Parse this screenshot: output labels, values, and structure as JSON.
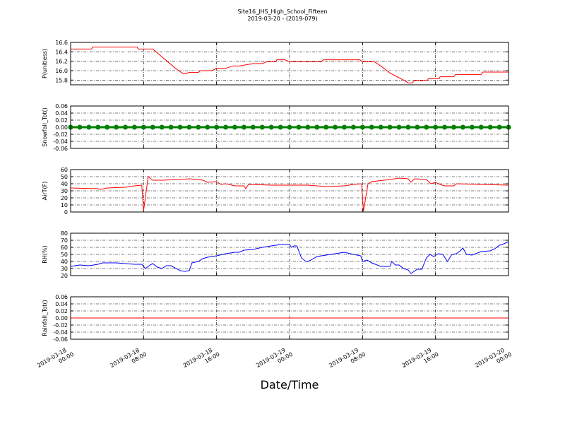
{
  "figure": {
    "title": "Site16_JHS_High_School_Fifteen",
    "subtitle": "2019-03-20 - (2019-079)",
    "xlabel": "Date/Time",
    "xlim": [
      "2019-03-18 00:00",
      "2019-03-20 00:00"
    ],
    "xticks": [
      "2019-03-18 00:00",
      "2019-03-18 08:00",
      "2019-03-18 16:00",
      "2019-03-19 00:00",
      "2019-03-19 08:00",
      "2019-03-19 16:00",
      "2019-03-20 00:00"
    ]
  },
  "chart_data": [
    {
      "type": "line",
      "ylabel": "P(unitless)",
      "ylim": [
        15.7,
        16.6
      ],
      "yticks": [
        15.8,
        {
          "value": 16,
          "label": "16.0"
        },
        16.2,
        16.4,
        16.6
      ],
      "grid": true,
      "color": "#ff0000",
      "x": [
        "2019-03-18 00:00",
        "2019-03-18 02:18",
        "2019-03-18 02:24",
        "2019-03-18 07:18",
        "2019-03-18 07:24",
        "2019-03-18 09:00",
        "2019-03-18 11:30",
        "2019-03-18 12:00",
        "2019-03-18 12:24",
        "2019-03-18 13:00",
        "2019-03-18 14:00",
        "2019-03-18 14:12",
        "2019-03-18 15:30",
        "2019-03-18 16:00",
        "2019-03-18 17:00",
        "2019-03-18 17:48",
        "2019-03-18 18:30",
        "2019-03-18 20:00",
        "2019-03-18 21:00",
        "2019-03-18 21:30",
        "2019-03-18 22:30",
        "2019-03-18 22:36",
        "2019-03-18 23:30",
        "2019-03-19 00:00",
        "2019-03-19 03:30",
        "2019-03-19 03:42",
        "2019-03-19 07:42",
        "2019-03-19 08:00",
        "2019-03-19 09:18",
        "2019-03-19 10:00",
        "2019-03-19 11:00",
        "2019-03-19 12:00",
        "2019-03-19 12:42",
        "2019-03-19 13:00",
        "2019-03-19 13:30",
        "2019-03-19 13:36",
        "2019-03-19 15:06",
        "2019-03-19 15:12",
        "2019-03-19 16:24",
        "2019-03-19 16:30",
        "2019-03-19 18:00",
        "2019-03-19 18:12",
        "2019-03-19 21:00",
        "2019-03-19 21:12",
        "2019-03-20 00:00"
      ],
      "values": [
        16.46,
        16.46,
        16.5,
        16.5,
        16.46,
        16.46,
        16.05,
        15.98,
        15.93,
        15.96,
        15.96,
        16.0,
        16.0,
        16.05,
        16.05,
        16.1,
        16.1,
        16.15,
        16.15,
        16.19,
        16.19,
        16.23,
        16.23,
        16.19,
        16.19,
        16.23,
        16.23,
        16.19,
        16.19,
        16.1,
        15.95,
        15.85,
        15.78,
        15.74,
        15.74,
        15.79,
        15.79,
        15.83,
        15.83,
        15.87,
        15.87,
        15.92,
        15.92,
        15.97,
        15.97
      ]
    },
    {
      "type": "line",
      "ylabel": "Snowfall_Tot()",
      "ylim": [
        -0.06,
        0.06
      ],
      "yticks": [
        -0.06,
        -0.04,
        -0.02,
        {
          "value": 0,
          "label": "0.00"
        },
        0.02,
        0.04,
        0.06
      ],
      "grid": true,
      "color": "#008000",
      "marker": "o",
      "x": [
        "2019-03-18 00:00",
        "2019-03-18 01:00",
        "2019-03-18 02:00",
        "2019-03-18 03:00",
        "2019-03-18 04:00",
        "2019-03-18 05:00",
        "2019-03-18 06:00",
        "2019-03-18 07:00",
        "2019-03-18 08:00",
        "2019-03-18 09:00",
        "2019-03-18 10:00",
        "2019-03-18 11:00",
        "2019-03-18 12:00",
        "2019-03-18 13:00",
        "2019-03-18 14:00",
        "2019-03-18 15:00",
        "2019-03-18 16:00",
        "2019-03-18 17:00",
        "2019-03-18 18:00",
        "2019-03-18 19:00",
        "2019-03-18 20:00",
        "2019-03-18 21:00",
        "2019-03-18 22:00",
        "2019-03-18 23:00",
        "2019-03-19 00:00",
        "2019-03-19 01:00",
        "2019-03-19 02:00",
        "2019-03-19 03:00",
        "2019-03-19 04:00",
        "2019-03-19 05:00",
        "2019-03-19 06:00",
        "2019-03-19 07:00",
        "2019-03-19 08:00",
        "2019-03-19 09:00",
        "2019-03-19 10:00",
        "2019-03-19 11:00",
        "2019-03-19 12:00",
        "2019-03-19 13:00",
        "2019-03-19 14:00",
        "2019-03-19 15:00",
        "2019-03-19 16:00",
        "2019-03-19 17:00",
        "2019-03-19 18:00",
        "2019-03-19 19:00",
        "2019-03-19 20:00",
        "2019-03-19 21:00",
        "2019-03-19 22:00",
        "2019-03-19 23:00",
        "2019-03-20 00:00"
      ],
      "values": [
        0,
        0,
        0,
        0,
        0,
        0,
        0,
        0,
        0,
        0,
        0,
        0,
        0,
        0,
        0,
        0,
        0,
        0,
        0,
        0,
        0,
        0,
        0,
        0,
        0,
        0,
        0,
        0,
        0,
        0,
        0,
        0,
        0,
        0,
        0,
        0,
        0,
        0,
        0,
        0,
        0,
        0,
        0,
        0,
        0,
        0,
        0,
        0,
        0
      ]
    },
    {
      "type": "line",
      "ylabel": "AirT(F)",
      "ylim": [
        0,
        60
      ],
      "yticks": [
        0,
        10,
        20,
        30,
        40,
        50,
        60
      ],
      "grid": true,
      "color": "#ff0000",
      "x": [
        "2019-03-18 00:00",
        "2019-03-18 03:00",
        "2019-03-18 03:18",
        "2019-03-18 04:00",
        "2019-03-18 06:00",
        "2019-03-18 07:00",
        "2019-03-18 07:48",
        "2019-03-18 08:00",
        "2019-03-18 08:30",
        "2019-03-18 09:00",
        "2019-03-18 10:00",
        "2019-03-18 12:00",
        "2019-03-18 13:00",
        "2019-03-18 14:00",
        "2019-03-18 14:30",
        "2019-03-18 15:00",
        "2019-03-18 16:00",
        "2019-03-18 16:30",
        "2019-03-18 17:00",
        "2019-03-18 18:00",
        "2019-03-18 19:00",
        "2019-03-18 19:12",
        "2019-03-18 19:30",
        "2019-03-18 22:00",
        "2019-03-19 00:00",
        "2019-03-19 02:00",
        "2019-03-19 04:00",
        "2019-03-19 06:00",
        "2019-03-19 07:00",
        "2019-03-19 07:54",
        "2019-03-19 08:06",
        "2019-03-19 08:36",
        "2019-03-19 09:00",
        "2019-03-19 11:00",
        "2019-03-19 12:00",
        "2019-03-19 13:00",
        "2019-03-19 13:18",
        "2019-03-19 13:42",
        "2019-03-19 15:00",
        "2019-03-19 15:30",
        "2019-03-19 16:00",
        "2019-03-19 16:30",
        "2019-03-19 17:00",
        "2019-03-19 18:00",
        "2019-03-19 18:18",
        "2019-03-19 21:00",
        "2019-03-20 00:00"
      ],
      "values": [
        34,
        33,
        32,
        34,
        35,
        37,
        38,
        2,
        50,
        45,
        45,
        46,
        47,
        46,
        45,
        42,
        43,
        39,
        40,
        37,
        37,
        33,
        39,
        38,
        38,
        38,
        36,
        37,
        39,
        40,
        1,
        40,
        43,
        46,
        48,
        47,
        42,
        47,
        46,
        40,
        42,
        39,
        37,
        37,
        40,
        39,
        38
      ]
    },
    {
      "type": "line",
      "ylabel": "RH(%)",
      "ylim": [
        20,
        80
      ],
      "yticks": [
        20,
        30,
        40,
        50,
        60,
        70,
        80
      ],
      "grid": true,
      "color": "#0000ff",
      "x": [
        "2019-03-18 00:00",
        "2019-03-18 01:00",
        "2019-03-18 02:00",
        "2019-03-18 03:00",
        "2019-03-18 03:30",
        "2019-03-18 05:00",
        "2019-03-18 06:00",
        "2019-03-18 07:00",
        "2019-03-18 07:48",
        "2019-03-18 08:12",
        "2019-03-18 08:42",
        "2019-03-18 09:00",
        "2019-03-18 09:30",
        "2019-03-18 10:00",
        "2019-03-18 10:30",
        "2019-03-18 11:00",
        "2019-03-18 12:00",
        "2019-03-18 12:30",
        "2019-03-18 13:00",
        "2019-03-18 13:18",
        "2019-03-18 14:00",
        "2019-03-18 14:30",
        "2019-03-18 15:00",
        "2019-03-18 16:00",
        "2019-03-18 17:00",
        "2019-03-18 18:00",
        "2019-03-18 18:30",
        "2019-03-18 19:00",
        "2019-03-18 20:00",
        "2019-03-18 21:00",
        "2019-03-18 22:00",
        "2019-03-18 23:00",
        "2019-03-19 00:00",
        "2019-03-19 00:12",
        "2019-03-19 00:30",
        "2019-03-19 00:48",
        "2019-03-19 01:18",
        "2019-03-19 01:48",
        "2019-03-19 02:12",
        "2019-03-19 03:00",
        "2019-03-19 04:00",
        "2019-03-19 05:00",
        "2019-03-19 06:00",
        "2019-03-19 07:00",
        "2019-03-19 07:48",
        "2019-03-19 08:00",
        "2019-03-19 08:30",
        "2019-03-19 09:00",
        "2019-03-19 10:00",
        "2019-03-19 11:00",
        "2019-03-19 11:12",
        "2019-03-19 11:36",
        "2019-03-19 12:00",
        "2019-03-19 12:30",
        "2019-03-19 13:00",
        "2019-03-19 13:18",
        "2019-03-19 14:00",
        "2019-03-19 14:30",
        "2019-03-19 15:00",
        "2019-03-19 15:24",
        "2019-03-19 15:48",
        "2019-03-19 16:18",
        "2019-03-19 16:48",
        "2019-03-19 17:18",
        "2019-03-19 17:48",
        "2019-03-19 18:18",
        "2019-03-19 18:42",
        "2019-03-19 19:00",
        "2019-03-19 19:24",
        "2019-03-19 20:00",
        "2019-03-19 21:00",
        "2019-03-19 22:00",
        "2019-03-19 22:30",
        "2019-03-19 23:00",
        "2019-03-19 23:30",
        "2019-03-20 00:00"
      ],
      "values": [
        33,
        35,
        34,
        36,
        38,
        38,
        37,
        36,
        36,
        30,
        35,
        37,
        32,
        30,
        34,
        34,
        27,
        26,
        27,
        38,
        40,
        44,
        46,
        48,
        51,
        53,
        53,
        56,
        57,
        60,
        62,
        64,
        64,
        60,
        62,
        62,
        45,
        40,
        41,
        47,
        49,
        51,
        53,
        50,
        48,
        40,
        42,
        38,
        33,
        33,
        40,
        35,
        35,
        30,
        28,
        23,
        29,
        29,
        45,
        50,
        47,
        51,
        50,
        40,
        50,
        51,
        55,
        59,
        50,
        49,
        54,
        55,
        58,
        63,
        65,
        68
      ]
    },
    {
      "type": "line",
      "ylabel": "Rainfall_Tot()",
      "ylim": [
        -0.06,
        0.06
      ],
      "yticks": [
        -0.06,
        -0.04,
        -0.02,
        {
          "value": 0,
          "label": "0.00"
        },
        0.02,
        0.04,
        0.06
      ],
      "grid": true,
      "color": "#ff0000",
      "x": [
        "2019-03-18 00:00",
        "2019-03-18 04:00",
        "2019-03-18 08:00",
        "2019-03-18 12:00",
        "2019-03-18 16:00",
        "2019-03-18 20:00",
        "2019-03-19 00:00",
        "2019-03-19 04:00",
        "2019-03-19 08:00",
        "2019-03-19 12:00",
        "2019-03-19 16:00",
        "2019-03-19 20:00",
        "2019-03-20 00:00"
      ],
      "values": [
        0,
        0,
        0,
        0,
        0,
        0,
        0,
        0,
        0,
        0,
        0,
        0,
        0
      ]
    }
  ]
}
